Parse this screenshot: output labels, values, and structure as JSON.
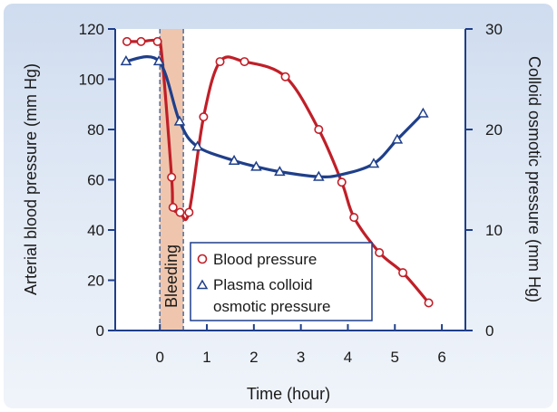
{
  "chart_data": {
    "type": "line",
    "xlabel": "Time (hour)",
    "ylabel_left": "Arterial blood pressure (mm Hg)",
    "ylabel_right": "Colloid osmotic pressure (mm Hg)",
    "xlim": [
      -0.95,
      6.5
    ],
    "xticks": [
      0,
      1,
      2,
      3,
      4,
      5,
      6
    ],
    "ylim_left": [
      0,
      120
    ],
    "yticks_left": [
      0,
      20,
      40,
      60,
      80,
      100,
      120
    ],
    "ylim_right": [
      0,
      30
    ],
    "yticks_right": [
      0,
      10,
      20,
      30
    ],
    "shaded_region": {
      "label": "Bleeding",
      "x_start": 0,
      "x_end": 0.5,
      "color": "#efc6ad"
    },
    "series": [
      {
        "name": "Blood pressure",
        "axis": "left",
        "color": "#c01f28",
        "marker": "circle",
        "x": [
          -0.7,
          -0.4,
          -0.05,
          0.05,
          0.25,
          0.28,
          0.43,
          0.62,
          0.93,
          1.28,
          1.8,
          2.67,
          3.38,
          3.87,
          4.13,
          4.67,
          5.17,
          5.72
        ],
        "y": [
          115,
          115,
          115,
          108,
          61,
          49,
          47,
          47,
          85,
          107,
          107,
          101,
          80,
          59,
          45,
          31,
          23,
          11
        ],
        "marker_idx": [
          0,
          1,
          2,
          4,
          5,
          6,
          7,
          8,
          9,
          10,
          11,
          12,
          13,
          14,
          15,
          16,
          17
        ]
      },
      {
        "name": "Plasma colloid osmotic pressure",
        "axis": "right",
        "color": "#1f3f8a",
        "marker": "triangle",
        "x": [
          -0.72,
          -0.02,
          0.42,
          0.8,
          1.58,
          2.05,
          2.55,
          3.38,
          3.85,
          4.55,
          5.05,
          5.6
        ],
        "y": [
          26.8,
          26.8,
          20.8,
          18.3,
          16.9,
          16.3,
          15.8,
          15.3,
          15.5,
          16.6,
          19.0,
          21.6
        ],
        "marker_idx": [
          0,
          1,
          2,
          3,
          4,
          5,
          6,
          7,
          9,
          10,
          11
        ]
      }
    ],
    "legend": {
      "placement": "lower-center",
      "entries": [
        "Blood pressure",
        "Plasma colloid",
        "osmotic pressure"
      ]
    }
  },
  "colors": {
    "axis": "#1f3f8a",
    "blood_pressure": "#c01f28",
    "colloid": "#1f3f8a",
    "bleeding": "#efc6ad"
  }
}
